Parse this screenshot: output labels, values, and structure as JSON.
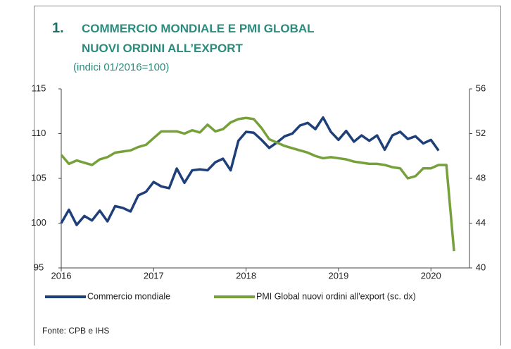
{
  "chart_data": {
    "type": "line",
    "number": "1.",
    "title_lines": [
      "COMMERCIO MONDIALE E PMI GLOBAL",
      "NUOVI ORDINI ALL’EXPORT"
    ],
    "subtitle": "(indici 01/2016=100)",
    "source": "Fonte: CPB e IHS",
    "x": [
      2016,
      2016.083,
      2016.167,
      2016.25,
      2016.333,
      2016.417,
      2016.5,
      2016.583,
      2016.667,
      2016.75,
      2016.833,
      2016.917,
      2017,
      2017.083,
      2017.167,
      2017.25,
      2017.333,
      2017.417,
      2017.5,
      2017.583,
      2017.667,
      2017.75,
      2017.833,
      2017.917,
      2018,
      2018.083,
      2018.167,
      2018.25,
      2018.333,
      2018.417,
      2018.5,
      2018.583,
      2018.667,
      2018.75,
      2018.833,
      2018.917,
      2019,
      2019.083,
      2019.167,
      2019.25,
      2019.333,
      2019.417,
      2019.5,
      2019.583,
      2019.667,
      2019.75,
      2019.833,
      2019.917,
      2020,
      2020.083,
      2020.167,
      2020.25
    ],
    "xlim": [
      2016,
      2020.417
    ],
    "xticks": [
      2016,
      2017,
      2018,
      2019,
      2020
    ],
    "ylim": [
      95,
      115
    ],
    "yticks": [
      95,
      100,
      105,
      110,
      115
    ],
    "y2lim": [
      40,
      56
    ],
    "y2ticks": [
      40,
      44,
      48,
      52,
      56
    ],
    "grid": false,
    "series": [
      {
        "name": "Commercio mondiale",
        "color": "#1f3f7a",
        "values": [
          100,
          101.5,
          99.8,
          100.8,
          100.3,
          101.4,
          100.2,
          101.9,
          101.7,
          101.3,
          103.1,
          103.5,
          104.6,
          104.1,
          103.9,
          106.1,
          104.5,
          105.9,
          106.0,
          105.9,
          106.8,
          107.2,
          105.9,
          109.2,
          110.2,
          110.1,
          109.3,
          108.4,
          109.0,
          109.7,
          110.0,
          110.9,
          111.2,
          110.5,
          111.8,
          110.2,
          109.3,
          110.3,
          109.1,
          109.8,
          109.2,
          109.8,
          108.2,
          109.8,
          110.2,
          109.4,
          109.7,
          108.9,
          109.3,
          108.1,
          null,
          null
        ]
      },
      {
        "name": "PMI Global nuovi ordini all'export (sc. dx)",
        "color": "#76a13a",
        "axis": "y2",
        "values": [
          50.1,
          49.3,
          49.6,
          49.4,
          49.2,
          49.7,
          49.9,
          50.3,
          50.4,
          50.5,
          50.8,
          51.0,
          51.6,
          52.2,
          52.2,
          52.2,
          52.0,
          52.3,
          52.1,
          52.8,
          52.2,
          52.4,
          53.0,
          53.3,
          53.4,
          53.3,
          52.5,
          51.5,
          51.2,
          50.9,
          50.7,
          50.5,
          50.3,
          50.0,
          49.8,
          49.9,
          49.8,
          49.7,
          49.5,
          49.4,
          49.3,
          49.3,
          49.2,
          49.0,
          48.9,
          48.0,
          48.2,
          48.9,
          48.9,
          49.2,
          49.2,
          41.5
        ]
      }
    ]
  }
}
